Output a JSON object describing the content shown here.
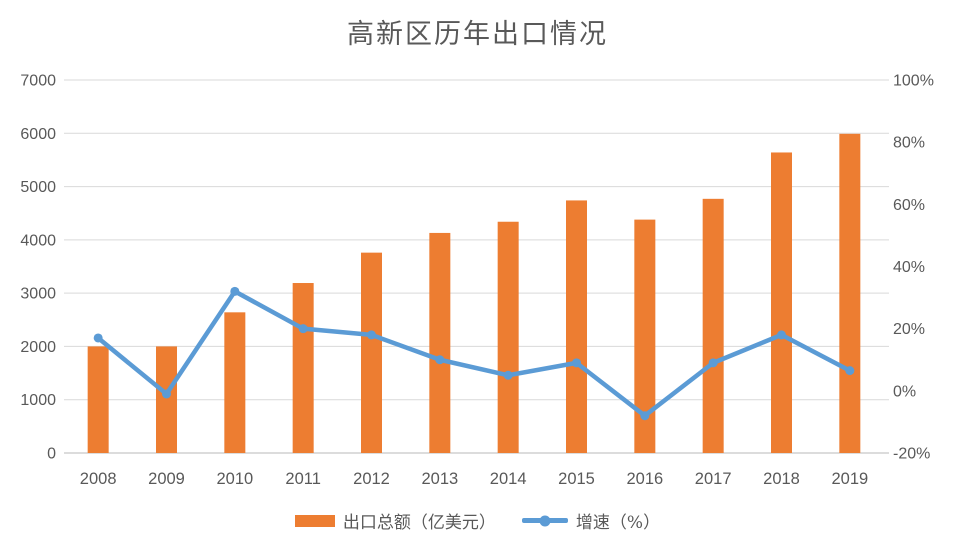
{
  "chart_data": {
    "type": "combo-bar-line",
    "title": "高新区历年出口情况",
    "categories": [
      "2008",
      "2009",
      "2010",
      "2011",
      "2012",
      "2013",
      "2014",
      "2015",
      "2016",
      "2017",
      "2018",
      "2019"
    ],
    "series": [
      {
        "name": "出口总额（亿美元）",
        "type": "bar",
        "axis": "left",
        "color": "#ED7D31",
        "values": [
          2000,
          2000,
          2640,
          3190,
          3760,
          4130,
          4340,
          4740,
          4380,
          4770,
          5640,
          5990
        ]
      },
      {
        "name": "增速（%）",
        "type": "line",
        "axis": "right",
        "color": "#5B9BD5",
        "values": [
          17,
          -1,
          32,
          20,
          18,
          10,
          5,
          9,
          -8,
          9,
          18,
          6.5
        ]
      }
    ],
    "left_axis": {
      "min": 0,
      "max": 7000,
      "step": 1000,
      "tick_labels": [
        "0",
        "1000",
        "2000",
        "3000",
        "4000",
        "5000",
        "6000",
        "7000"
      ]
    },
    "right_axis": {
      "min": -20,
      "max": 100,
      "step": 20,
      "tick_labels": [
        "-20%",
        "0%",
        "20%",
        "40%",
        "60%",
        "80%",
        "100%"
      ]
    },
    "grid": true,
    "legend_position": "bottom",
    "colors": {
      "bar": "#ED7D31",
      "line": "#5B9BD5",
      "gridline": "#D9D9D9",
      "axis_line": "#C6C6C6",
      "text": "#595959"
    }
  }
}
